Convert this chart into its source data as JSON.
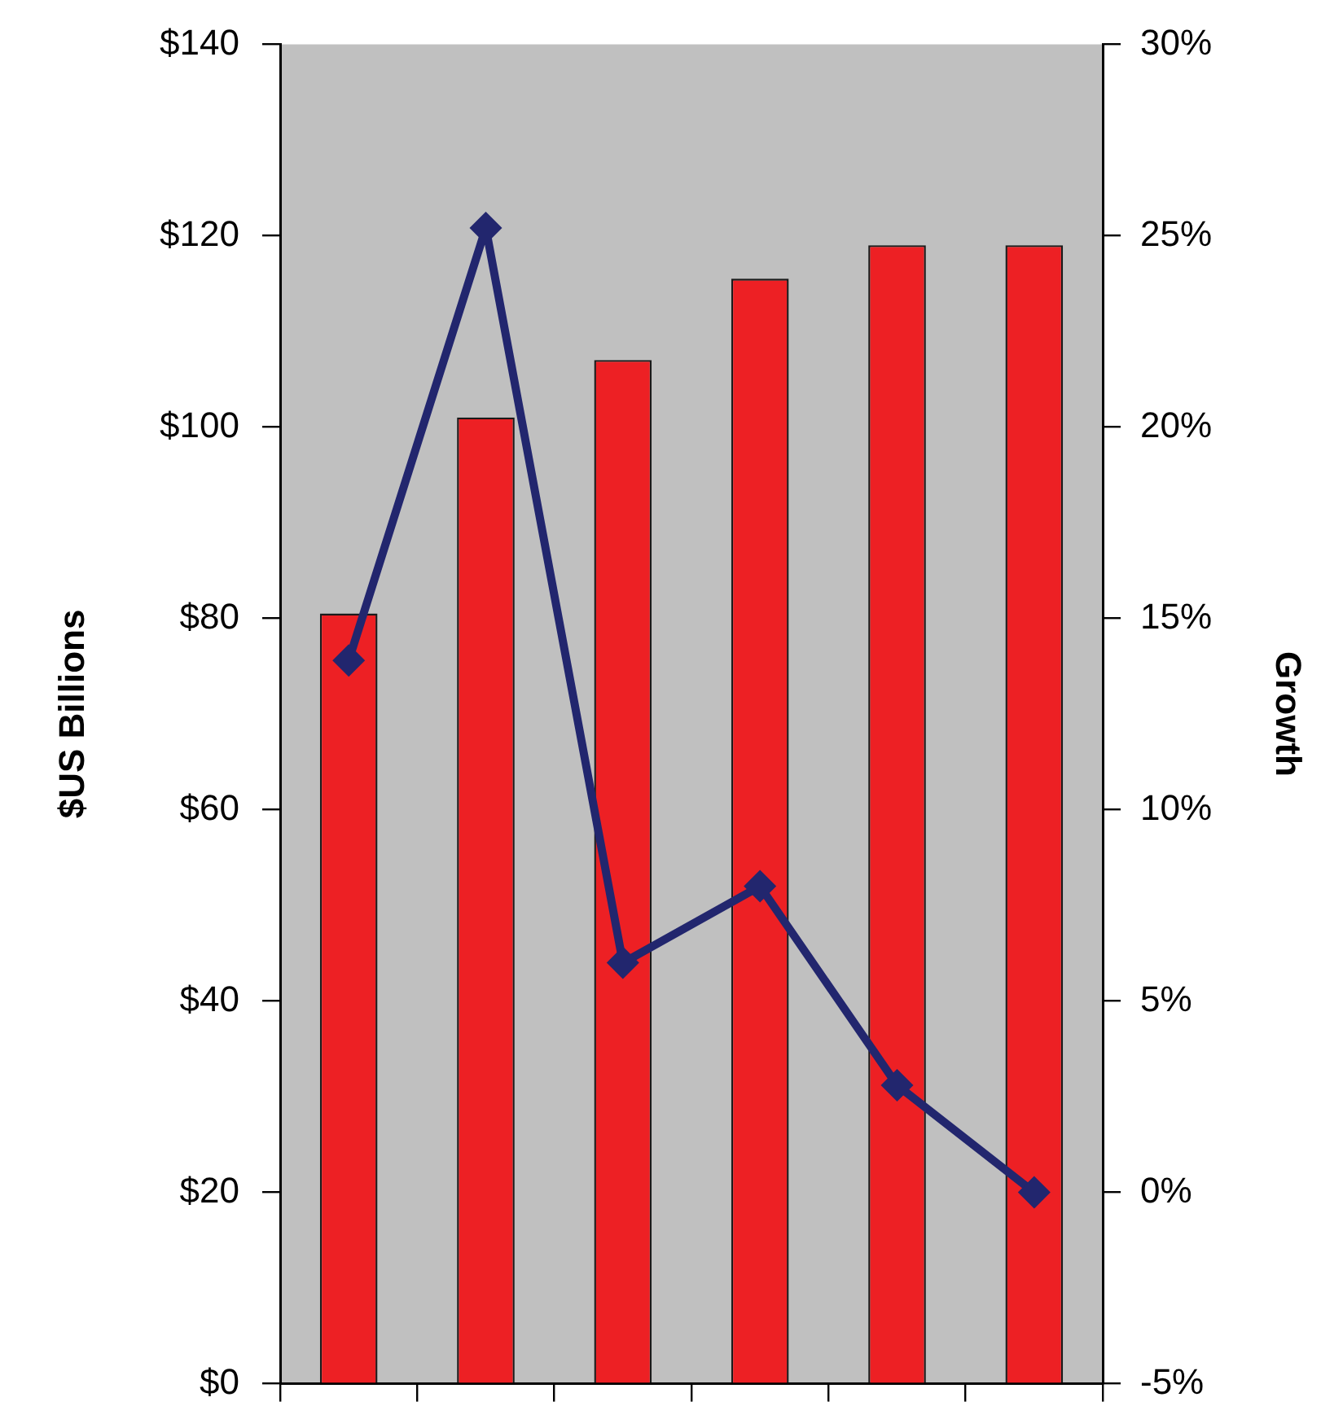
{
  "chart_data": {
    "type": "bar",
    "categories": [
      null,
      null,
      null,
      null,
      null,
      null
    ],
    "series": [
      {
        "color": "#ed2024",
        "values": [
          80.5,
          101,
          107,
          115.5,
          119,
          119
        ]
      },
      {
        "type": "line",
        "color": "#22266e",
        "axis": "y2",
        "marker": "diamond",
        "line_style": "solid",
        "values": [
          13.9,
          25.2,
          6,
          8,
          2.8,
          0
        ]
      }
    ],
    "ylabel": "$US Billions",
    "y2label": "Growth",
    "ylim": [
      0,
      140
    ],
    "yticks": [
      {
        "value": 0,
        "label": "$0"
      },
      {
        "value": 20,
        "label": "$20"
      },
      {
        "value": 40,
        "label": "$40"
      },
      {
        "value": 60,
        "label": "$60"
      },
      {
        "value": 80,
        "label": "$80"
      },
      {
        "value": 100,
        "label": "$100"
      },
      {
        "value": 120,
        "label": "$120"
      },
      {
        "value": 140,
        "label": "$140"
      }
    ],
    "y2lim": [
      -5,
      30
    ],
    "y2ticks": [
      {
        "value": -5,
        "label": "-5%"
      },
      {
        "value": 0,
        "label": "0%"
      },
      {
        "value": 5,
        "label": "5%"
      },
      {
        "value": 10,
        "label": "10%"
      },
      {
        "value": 15,
        "label": "15%"
      },
      {
        "value": 20,
        "label": "20%"
      },
      {
        "value": 25,
        "label": "25%"
      },
      {
        "value": 30,
        "label": "30%"
      }
    ]
  }
}
